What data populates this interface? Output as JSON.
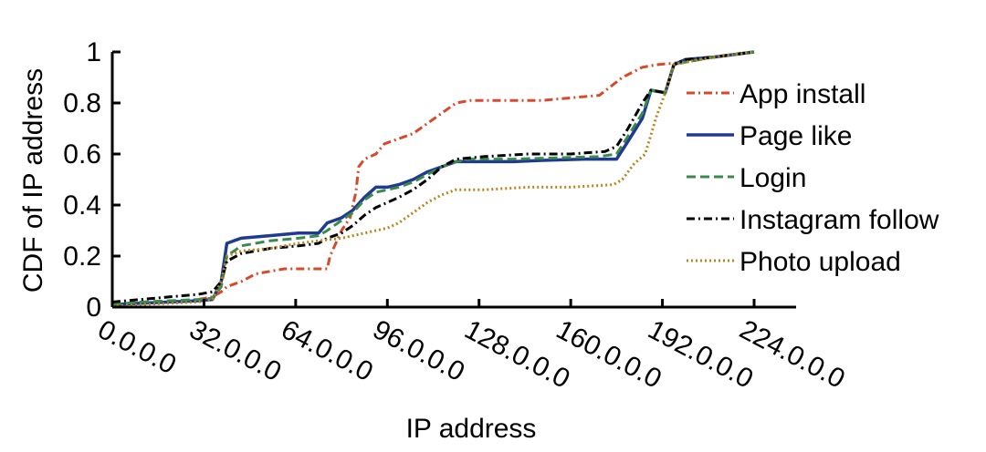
{
  "chart_data": {
    "type": "line",
    "title": "",
    "xlabel": "IP address",
    "ylabel": "CDF of IP address",
    "xlim": [
      0,
      224
    ],
    "ylim": [
      0,
      1
    ],
    "grid": false,
    "legend_position": "right",
    "x_ticks": [
      {
        "value": 0,
        "label": "0.0.0.0"
      },
      {
        "value": 32,
        "label": "32.0.0.0"
      },
      {
        "value": 64,
        "label": "64.0.0.0"
      },
      {
        "value": 96,
        "label": "96.0.0.0"
      },
      {
        "value": 128,
        "label": "128.0.0.0"
      },
      {
        "value": 160,
        "label": "160.0.0.0"
      },
      {
        "value": 192,
        "label": "192.0.0.0"
      },
      {
        "value": 224,
        "label": "224.0.0.0"
      }
    ],
    "y_ticks": [
      {
        "value": 0,
        "label": "0"
      },
      {
        "value": 0.2,
        "label": "0.2"
      },
      {
        "value": 0.4,
        "label": "0.4"
      },
      {
        "value": 0.6,
        "label": "0.6"
      },
      {
        "value": 0.8,
        "label": "0.8"
      },
      {
        "value": 1,
        "label": "1"
      }
    ],
    "series": [
      {
        "name": "App install",
        "color": "#d9482b",
        "dash": "dashdot",
        "points": [
          [
            0,
            0.01
          ],
          [
            10,
            0.015
          ],
          [
            20,
            0.02
          ],
          [
            30,
            0.03
          ],
          [
            35,
            0.04
          ],
          [
            38,
            0.06
          ],
          [
            40,
            0.08
          ],
          [
            45,
            0.1
          ],
          [
            50,
            0.13
          ],
          [
            55,
            0.14
          ],
          [
            60,
            0.15
          ],
          [
            70,
            0.15
          ],
          [
            75,
            0.15
          ],
          [
            76,
            0.2
          ],
          [
            80,
            0.3
          ],
          [
            83,
            0.35
          ],
          [
            85,
            0.45
          ],
          [
            86,
            0.55
          ],
          [
            88,
            0.58
          ],
          [
            92,
            0.6
          ],
          [
            95,
            0.64
          ],
          [
            100,
            0.66
          ],
          [
            105,
            0.68
          ],
          [
            110,
            0.72
          ],
          [
            115,
            0.76
          ],
          [
            120,
            0.8
          ],
          [
            125,
            0.81
          ],
          [
            135,
            0.81
          ],
          [
            150,
            0.81
          ],
          [
            160,
            0.82
          ],
          [
            170,
            0.83
          ],
          [
            178,
            0.9
          ],
          [
            185,
            0.94
          ],
          [
            190,
            0.95
          ],
          [
            200,
            0.96
          ],
          [
            210,
            0.98
          ],
          [
            224,
            1
          ]
        ]
      },
      {
        "name": "Page like",
        "color": "#1f3a93",
        "dash": "solid",
        "points": [
          [
            0,
            0.01
          ],
          [
            10,
            0.015
          ],
          [
            20,
            0.02
          ],
          [
            30,
            0.025
          ],
          [
            35,
            0.03
          ],
          [
            38,
            0.1
          ],
          [
            40,
            0.25
          ],
          [
            45,
            0.27
          ],
          [
            55,
            0.28
          ],
          [
            65,
            0.29
          ],
          [
            72,
            0.29
          ],
          [
            75,
            0.33
          ],
          [
            80,
            0.35
          ],
          [
            84,
            0.38
          ],
          [
            88,
            0.43
          ],
          [
            92,
            0.47
          ],
          [
            96,
            0.47
          ],
          [
            100,
            0.48
          ],
          [
            105,
            0.5
          ],
          [
            110,
            0.53
          ],
          [
            115,
            0.55
          ],
          [
            120,
            0.57
          ],
          [
            125,
            0.57
          ],
          [
            140,
            0.57
          ],
          [
            150,
            0.575
          ],
          [
            165,
            0.58
          ],
          [
            176,
            0.58
          ],
          [
            180,
            0.65
          ],
          [
            185,
            0.74
          ],
          [
            188,
            0.85
          ],
          [
            193,
            0.84
          ],
          [
            196,
            0.95
          ],
          [
            200,
            0.97
          ],
          [
            210,
            0.98
          ],
          [
            224,
            1
          ]
        ]
      },
      {
        "name": "Login",
        "color": "#3a8a4b",
        "dash": "dashed",
        "points": [
          [
            0,
            0.01
          ],
          [
            10,
            0.02
          ],
          [
            20,
            0.025
          ],
          [
            30,
            0.03
          ],
          [
            35,
            0.035
          ],
          [
            38,
            0.08
          ],
          [
            40,
            0.2
          ],
          [
            45,
            0.24
          ],
          [
            55,
            0.26
          ],
          [
            65,
            0.27
          ],
          [
            72,
            0.28
          ],
          [
            75,
            0.3
          ],
          [
            80,
            0.34
          ],
          [
            84,
            0.37
          ],
          [
            88,
            0.42
          ],
          [
            92,
            0.45
          ],
          [
            96,
            0.46
          ],
          [
            100,
            0.47
          ],
          [
            105,
            0.49
          ],
          [
            110,
            0.52
          ],
          [
            115,
            0.55
          ],
          [
            120,
            0.57
          ],
          [
            125,
            0.58
          ],
          [
            140,
            0.58
          ],
          [
            155,
            0.585
          ],
          [
            170,
            0.59
          ],
          [
            176,
            0.6
          ],
          [
            180,
            0.67
          ],
          [
            185,
            0.76
          ],
          [
            188,
            0.85
          ],
          [
            193,
            0.84
          ],
          [
            196,
            0.95
          ],
          [
            200,
            0.96
          ],
          [
            210,
            0.98
          ],
          [
            224,
            1
          ]
        ]
      },
      {
        "name": "Instagram follow",
        "color": "#000000",
        "dash": "dashdot",
        "points": [
          [
            0,
            0.02
          ],
          [
            10,
            0.03
          ],
          [
            20,
            0.04
          ],
          [
            30,
            0.05
          ],
          [
            35,
            0.06
          ],
          [
            38,
            0.1
          ],
          [
            40,
            0.18
          ],
          [
            45,
            0.21
          ],
          [
            55,
            0.23
          ],
          [
            65,
            0.24
          ],
          [
            72,
            0.25
          ],
          [
            75,
            0.27
          ],
          [
            80,
            0.29
          ],
          [
            84,
            0.32
          ],
          [
            88,
            0.36
          ],
          [
            92,
            0.39
          ],
          [
            96,
            0.41
          ],
          [
            100,
            0.43
          ],
          [
            105,
            0.46
          ],
          [
            110,
            0.5
          ],
          [
            115,
            0.55
          ],
          [
            120,
            0.58
          ],
          [
            130,
            0.59
          ],
          [
            145,
            0.6
          ],
          [
            160,
            0.6
          ],
          [
            172,
            0.61
          ],
          [
            176,
            0.63
          ],
          [
            180,
            0.7
          ],
          [
            185,
            0.8
          ],
          [
            188,
            0.85
          ],
          [
            193,
            0.84
          ],
          [
            196,
            0.95
          ],
          [
            200,
            0.97
          ],
          [
            210,
            0.98
          ],
          [
            224,
            1
          ]
        ]
      },
      {
        "name": "Photo upload",
        "color": "#b8861b",
        "dash": "dotted",
        "points": [
          [
            0,
            0.005
          ],
          [
            10,
            0.01
          ],
          [
            20,
            0.015
          ],
          [
            30,
            0.02
          ],
          [
            35,
            0.03
          ],
          [
            38,
            0.1
          ],
          [
            40,
            0.2
          ],
          [
            45,
            0.22
          ],
          [
            55,
            0.23
          ],
          [
            65,
            0.25
          ],
          [
            72,
            0.26
          ],
          [
            80,
            0.27
          ],
          [
            88,
            0.29
          ],
          [
            96,
            0.31
          ],
          [
            100,
            0.33
          ],
          [
            105,
            0.37
          ],
          [
            110,
            0.41
          ],
          [
            115,
            0.44
          ],
          [
            120,
            0.46
          ],
          [
            130,
            0.46
          ],
          [
            145,
            0.47
          ],
          [
            160,
            0.47
          ],
          [
            175,
            0.48
          ],
          [
            178,
            0.5
          ],
          [
            182,
            0.56
          ],
          [
            186,
            0.6
          ],
          [
            190,
            0.75
          ],
          [
            193,
            0.84
          ],
          [
            196,
            0.95
          ],
          [
            200,
            0.96
          ],
          [
            210,
            0.98
          ],
          [
            224,
            1
          ]
        ]
      }
    ]
  }
}
